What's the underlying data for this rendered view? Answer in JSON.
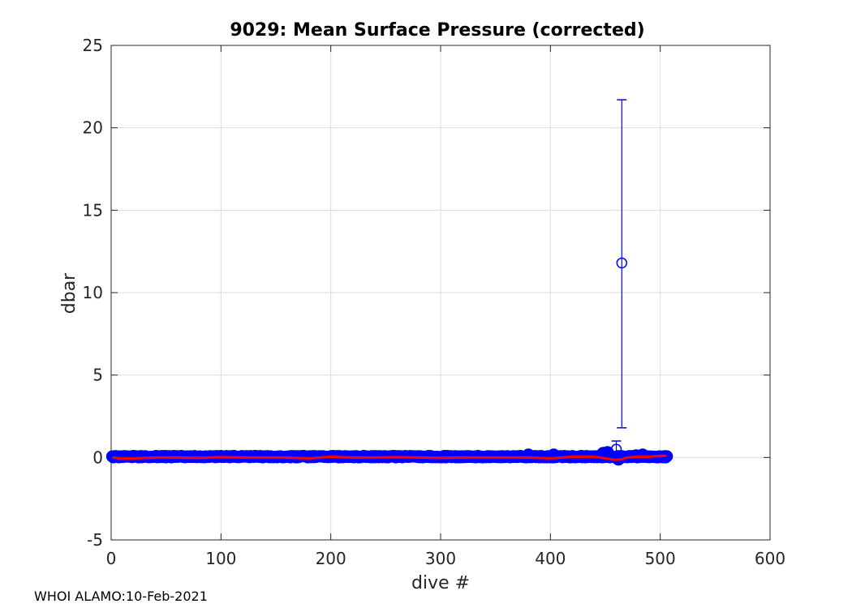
{
  "chart_data": {
    "type": "scatter",
    "title": "9029: Mean Surface Pressure (corrected)",
    "xlabel": "dive #",
    "ylabel": "dbar",
    "xlim": [
      0,
      600
    ],
    "ylim": [
      -5,
      25
    ],
    "xticks": [
      0,
      100,
      200,
      300,
      400,
      500,
      600
    ],
    "yticks": [
      -5,
      0,
      5,
      10,
      15,
      20,
      25
    ],
    "xtick_labels": [
      "0",
      "100",
      "200",
      "300",
      "400",
      "500",
      "600"
    ],
    "ytick_labels": [
      "-5",
      "0",
      "5",
      "10",
      "15",
      "20",
      "25"
    ],
    "grid": true,
    "footer": "WHOI ALAMO:10-Feb-2021",
    "colors": {
      "points": "#0000ff",
      "trend": "#ff0000",
      "grid": "#dcdcdc",
      "axes": "#262626"
    },
    "series": [
      {
        "style": "filled-circles",
        "x_range": [
          1,
          506
        ],
        "y_value": 0.05,
        "y_noise_dbar": 0.08,
        "bumps": [
          {
            "x": 380,
            "y": 0.15
          },
          {
            "x": 403,
            "y": 0.15
          },
          {
            "x": 448,
            "y": 0.25
          },
          {
            "x": 452,
            "y": 0.3
          },
          {
            "x": 462,
            "y": -0.1
          },
          {
            "x": 478,
            "y": 0.1
          },
          {
            "x": 484,
            "y": 0.15
          }
        ]
      },
      {
        "style": "open-circles-errorbars",
        "points": [
          {
            "x": 460,
            "y": 0.5,
            "low": 0.0,
            "high": 1.0
          },
          {
            "x": 465,
            "y": 11.8,
            "low": 1.8,
            "high": 21.7
          }
        ]
      },
      {
        "style": "line",
        "x": [
          1,
          10,
          20,
          40,
          60,
          80,
          100,
          120,
          140,
          160,
          180,
          200,
          220,
          240,
          260,
          280,
          300,
          320,
          340,
          360,
          380,
          400,
          420,
          440,
          450,
          455,
          460,
          465,
          470,
          480,
          490,
          500,
          506
        ],
        "y": [
          0.0,
          -0.05,
          -0.05,
          0.0,
          0.0,
          -0.02,
          0.02,
          0.0,
          0.0,
          0.0,
          -0.05,
          0.05,
          0.0,
          0.0,
          0.02,
          0.0,
          -0.02,
          0.0,
          0.0,
          0.0,
          0.0,
          -0.05,
          0.05,
          0.05,
          -0.05,
          -0.1,
          -0.15,
          -0.1,
          0.0,
          0.05,
          0.05,
          0.1,
          0.1
        ]
      }
    ]
  }
}
